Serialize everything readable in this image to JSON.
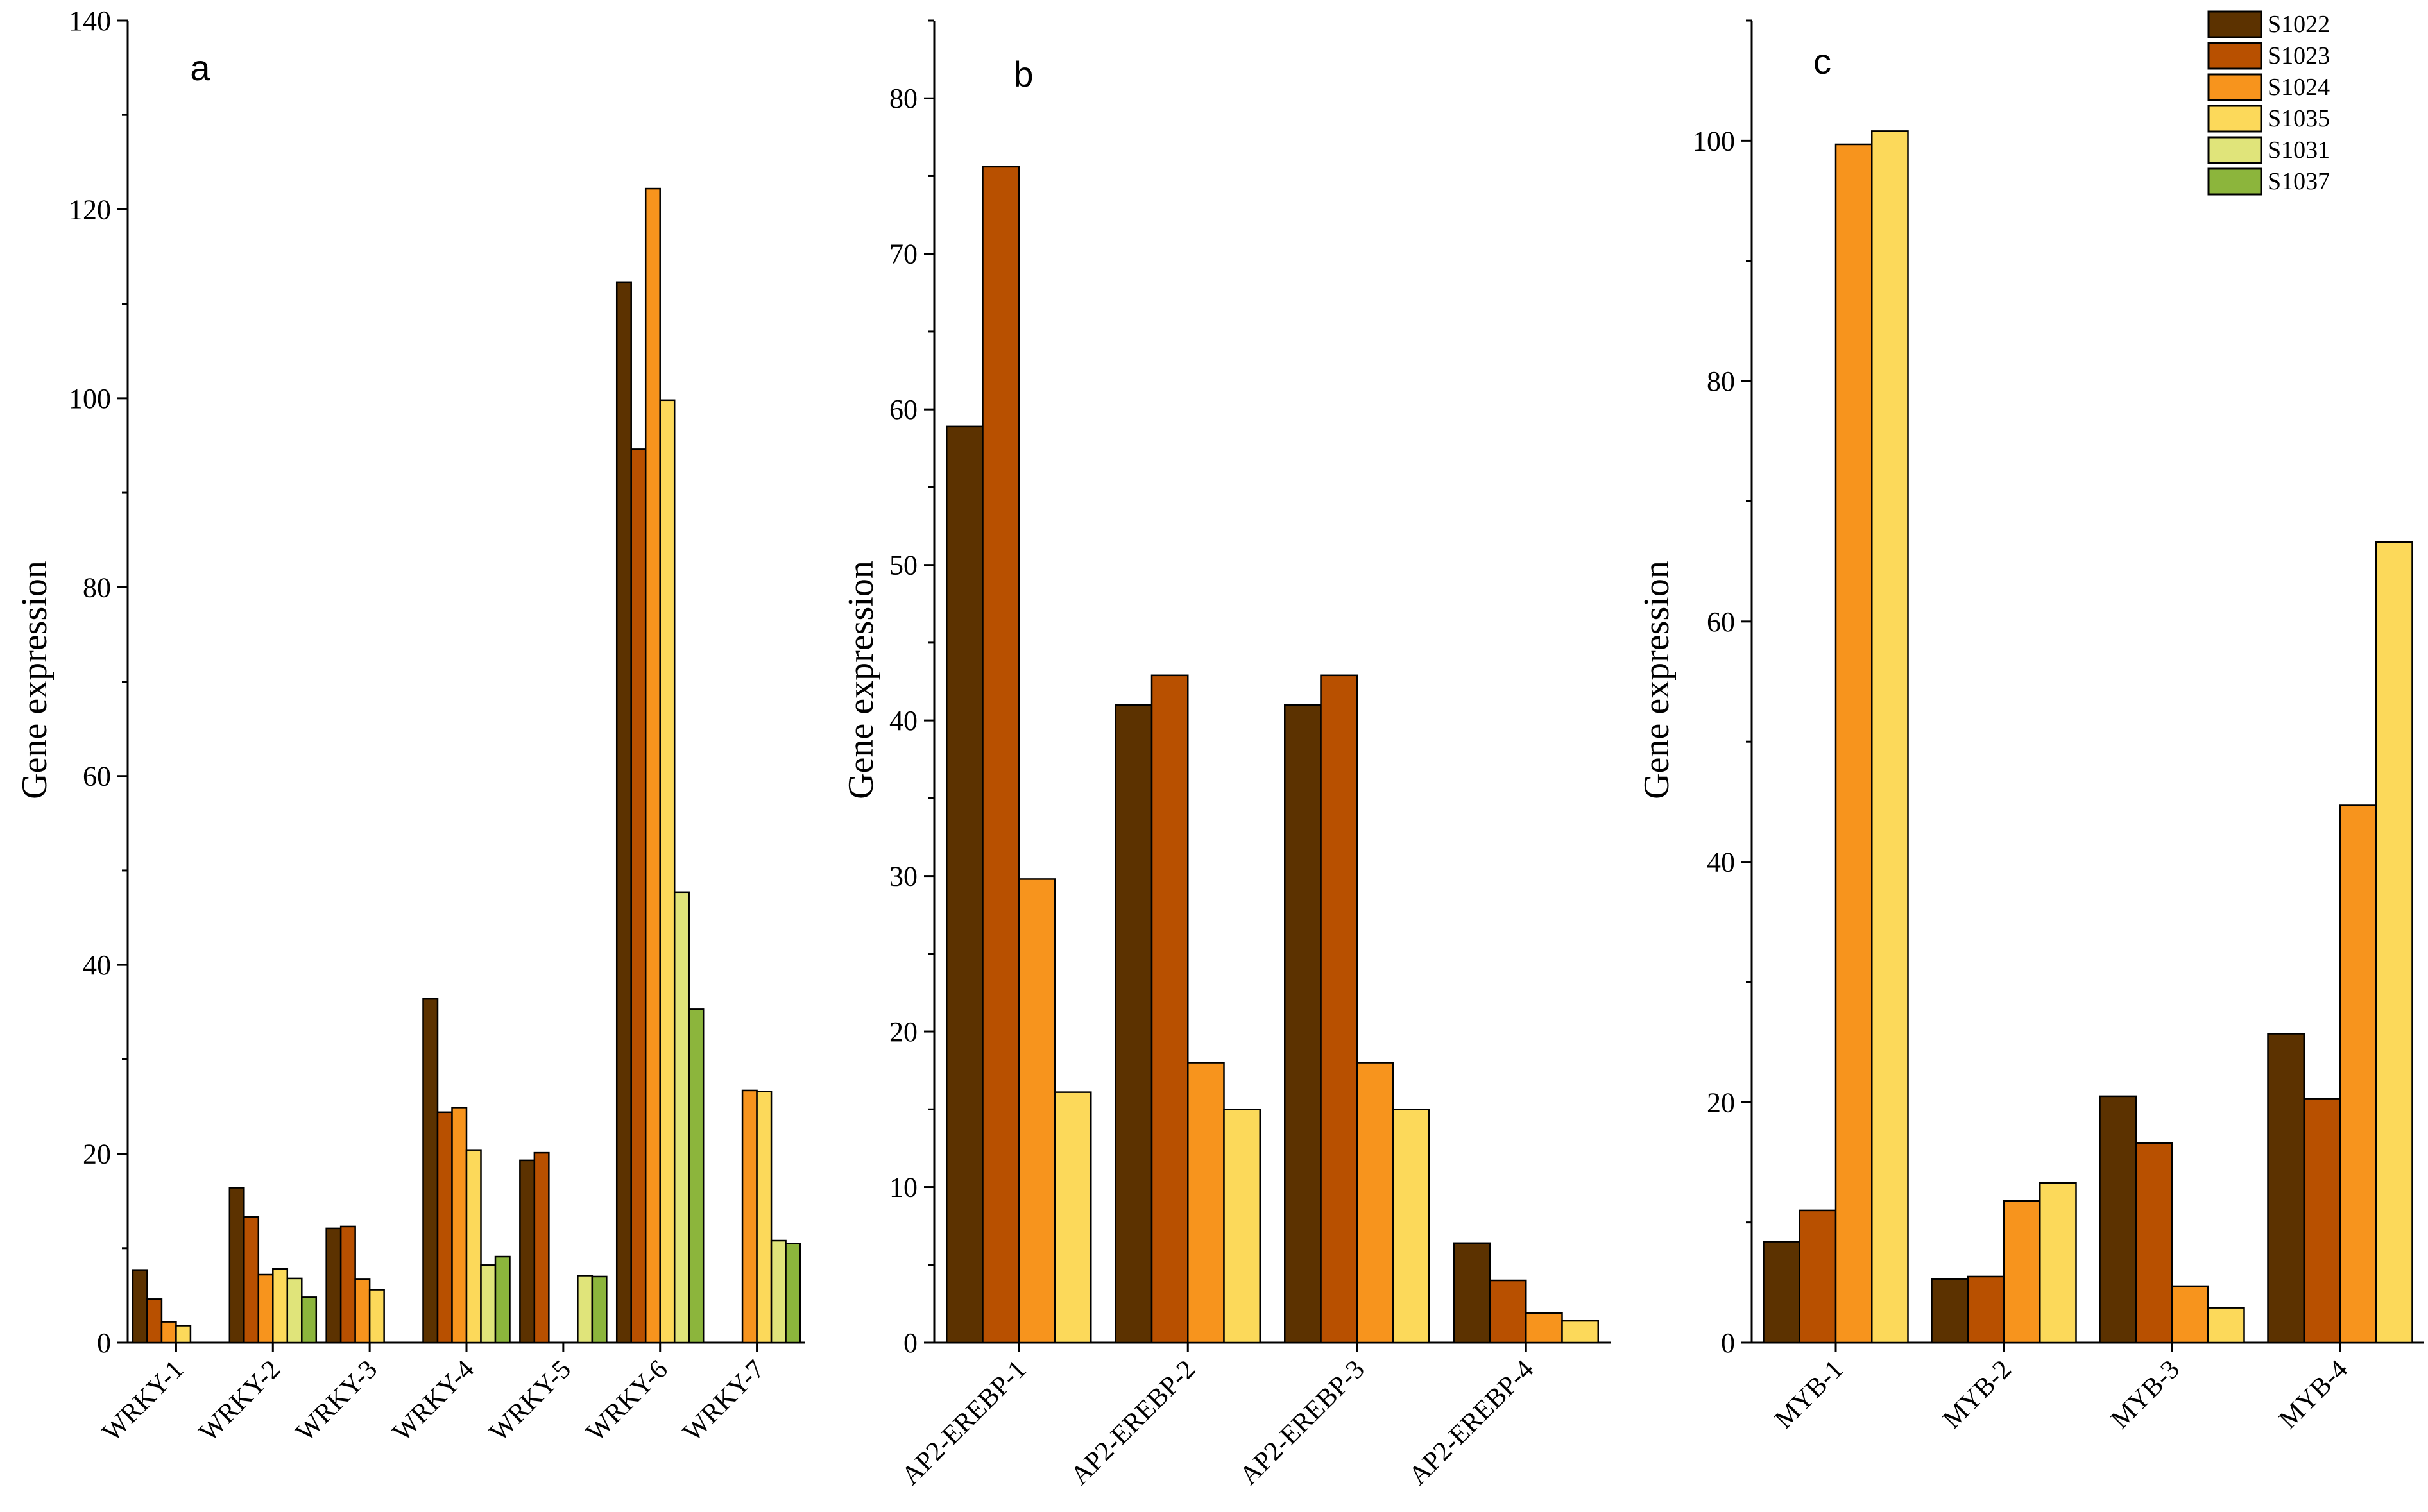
{
  "ylabel": "Gene expression",
  "legend": [
    {
      "name": "S1022",
      "color": "#5c3200"
    },
    {
      "name": "S1023",
      "color": "#b85000"
    },
    {
      "name": "S1024",
      "color": "#f7941d"
    },
    {
      "name": "S1035",
      "color": "#fcd95a"
    },
    {
      "name": "S1031",
      "color": "#e0e47a"
    },
    {
      "name": "S1037",
      "color": "#8cb53c"
    }
  ],
  "chart_data": [
    {
      "type": "bar",
      "panel_label": "a",
      "ylabel": "Gene expression",
      "ylim": [
        0,
        140
      ],
      "yticks": [
        0,
        20,
        40,
        60,
        80,
        100,
        120,
        140
      ],
      "categories": [
        "WRKY-1",
        "WRKY-2",
        "WRKY-3",
        "WRKY-4",
        "WRKY-5",
        "WRKY-6",
        "WRKY-7"
      ],
      "series": [
        {
          "name": "S1022",
          "values": [
            7.7,
            16.4,
            12.1,
            36.4,
            19.3,
            112.3,
            null
          ]
        },
        {
          "name": "S1023",
          "values": [
            4.6,
            13.3,
            12.3,
            24.4,
            20.1,
            94.6,
            null
          ]
        },
        {
          "name": "S1024",
          "values": [
            2.2,
            7.2,
            6.7,
            24.9,
            null,
            122.2,
            26.7
          ]
        },
        {
          "name": "S1035",
          "values": [
            1.8,
            7.8,
            5.6,
            20.4,
            null,
            99.8,
            26.6
          ]
        },
        {
          "name": "S1031",
          "values": [
            null,
            6.8,
            null,
            8.2,
            7.1,
            47.7,
            10.8
          ]
        },
        {
          "name": "S1037",
          "values": [
            null,
            4.8,
            null,
            9.1,
            7.0,
            35.3,
            10.5
          ]
        }
      ]
    },
    {
      "type": "bar",
      "panel_label": "b",
      "ylabel": "Gene expression",
      "ylim": [
        0,
        85
      ],
      "yticks": [
        0,
        10,
        20,
        30,
        40,
        50,
        60,
        70,
        80
      ],
      "categories": [
        "AP2-EREBP-1",
        "AP2-EREBP-2",
        "AP2-EREBP-3",
        "AP2-EREBP-4"
      ],
      "series": [
        {
          "name": "S1022",
          "values": [
            58.9,
            41.0,
            41.0,
            6.4
          ]
        },
        {
          "name": "S1023",
          "values": [
            75.6,
            42.9,
            42.9,
            4.0
          ]
        },
        {
          "name": "S1024",
          "values": [
            29.8,
            18.0,
            18.0,
            1.9
          ]
        },
        {
          "name": "S1035",
          "values": [
            16.1,
            15.0,
            15.0,
            1.4
          ]
        }
      ]
    },
    {
      "type": "bar",
      "panel_label": "c",
      "ylabel": "Gene expression",
      "ylim": [
        0,
        110
      ],
      "yticks": [
        0,
        20,
        40,
        60,
        80,
        100
      ],
      "categories": [
        "MYB-1",
        "MYB-2",
        "MYB-3",
        "MYB-4"
      ],
      "series": [
        {
          "name": "S1022",
          "values": [
            8.4,
            5.3,
            20.5,
            25.7
          ]
        },
        {
          "name": "S1023",
          "values": [
            11.0,
            5.5,
            16.6,
            20.3
          ]
        },
        {
          "name": "S1024",
          "values": [
            99.7,
            11.8,
            4.7,
            44.7
          ]
        },
        {
          "name": "S1035",
          "values": [
            100.8,
            13.3,
            2.9,
            66.6
          ]
        }
      ]
    }
  ]
}
